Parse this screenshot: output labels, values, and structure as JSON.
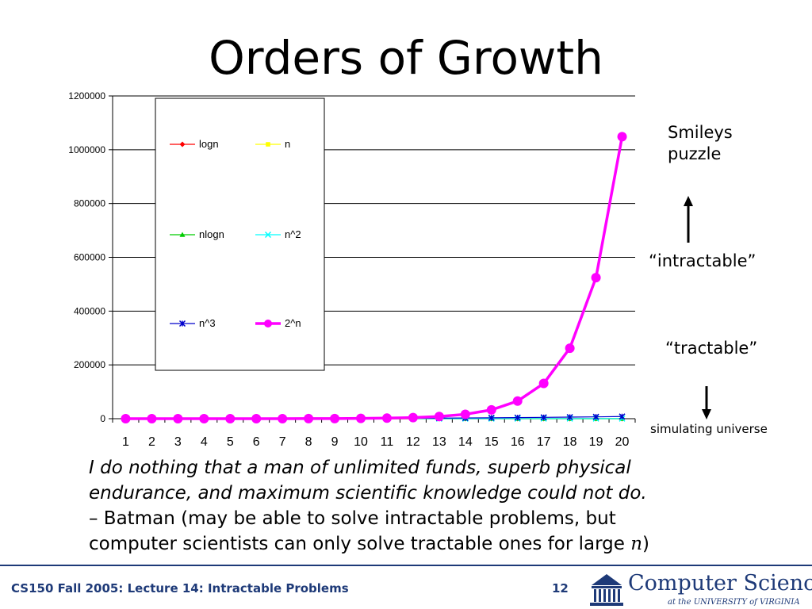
{
  "slide": {
    "title": "Orders of Growth",
    "notes": {
      "smileys": [
        "Smileys",
        "puzzle"
      ],
      "intractable": "“intractable”",
      "tractable": "“tractable”",
      "simulating": "simulating universe"
    },
    "quote": {
      "italic_line1": "I do nothing that a man of unlimited funds, superb physical",
      "italic_line2": "endurance, and maximum scientific knowledge could not do.",
      "attribution_line1": "– Batman (may be able to solve intractable problems, but",
      "attribution_line2_prefix": "computer scientists can only solve tractable ones for large ",
      "attribution_var": "n",
      "attribution_suffix": ")"
    },
    "footer": {
      "course": "CS150 Fall 2005: Lecture 14: Intractable Problems",
      "page": "12",
      "logo_main": "Computer Science",
      "logo_sub": "at the UNIVERSITY of VIRGINIA"
    },
    "colors": {
      "footer_blue": "#1e3a78",
      "arrow": "#000000"
    }
  },
  "chart_data": {
    "type": "line",
    "title": "",
    "xlabel": "",
    "ylabel": "",
    "categories": [
      "1",
      "2",
      "3",
      "4",
      "5",
      "6",
      "7",
      "8",
      "9",
      "10",
      "11",
      "12",
      "13",
      "14",
      "15",
      "16",
      "17",
      "18",
      "19",
      "20"
    ],
    "ylim": [
      0,
      1200000
    ],
    "yticks": [
      0,
      200000,
      400000,
      600000,
      800000,
      1000000,
      1200000
    ],
    "ytick_labels": [
      "0",
      "200000",
      "400000",
      "600000",
      "800000",
      "1000000",
      "1200000"
    ],
    "grid": true,
    "legend": "top-left",
    "series": [
      {
        "name": "logn",
        "color": "#ff0000",
        "marker": "diamond",
        "values": [
          0,
          0.693,
          1.099,
          1.386,
          1.609,
          1.792,
          1.946,
          2.079,
          2.197,
          2.303,
          2.398,
          2.485,
          2.565,
          2.639,
          2.708,
          2.773,
          2.833,
          2.89,
          2.944,
          2.996
        ]
      },
      {
        "name": "n",
        "color": "#ffff00",
        "marker": "square",
        "values": [
          1,
          2,
          3,
          4,
          5,
          6,
          7,
          8,
          9,
          10,
          11,
          12,
          13,
          14,
          15,
          16,
          17,
          18,
          19,
          20
        ]
      },
      {
        "name": "nlogn",
        "color": "#00cc00",
        "marker": "triangle",
        "values": [
          0,
          1.386,
          3.296,
          5.545,
          8.047,
          10.75,
          13.62,
          16.64,
          19.78,
          23.03,
          26.38,
          29.82,
          33.34,
          36.95,
          40.62,
          44.36,
          48.16,
          52.03,
          55.94,
          59.91
        ]
      },
      {
        "name": "n^2",
        "color": "#00ffff",
        "marker": "x",
        "values": [
          1,
          4,
          9,
          16,
          25,
          36,
          49,
          64,
          81,
          100,
          121,
          144,
          169,
          196,
          225,
          256,
          289,
          324,
          361,
          400
        ]
      },
      {
        "name": "n^3",
        "color": "#0000cc",
        "marker": "star",
        "values": [
          1,
          8,
          27,
          64,
          125,
          216,
          343,
          512,
          729,
          1000,
          1331,
          1728,
          2197,
          2744,
          3375,
          4096,
          4913,
          5832,
          6859,
          8000
        ]
      },
      {
        "name": "2^n",
        "color": "#ff00ff",
        "marker": "circle",
        "values": [
          2,
          4,
          8,
          16,
          32,
          64,
          128,
          256,
          512,
          1024,
          2048,
          4096,
          8192,
          16384,
          32768,
          65536,
          131072,
          262144,
          524288,
          1048576
        ]
      }
    ]
  }
}
